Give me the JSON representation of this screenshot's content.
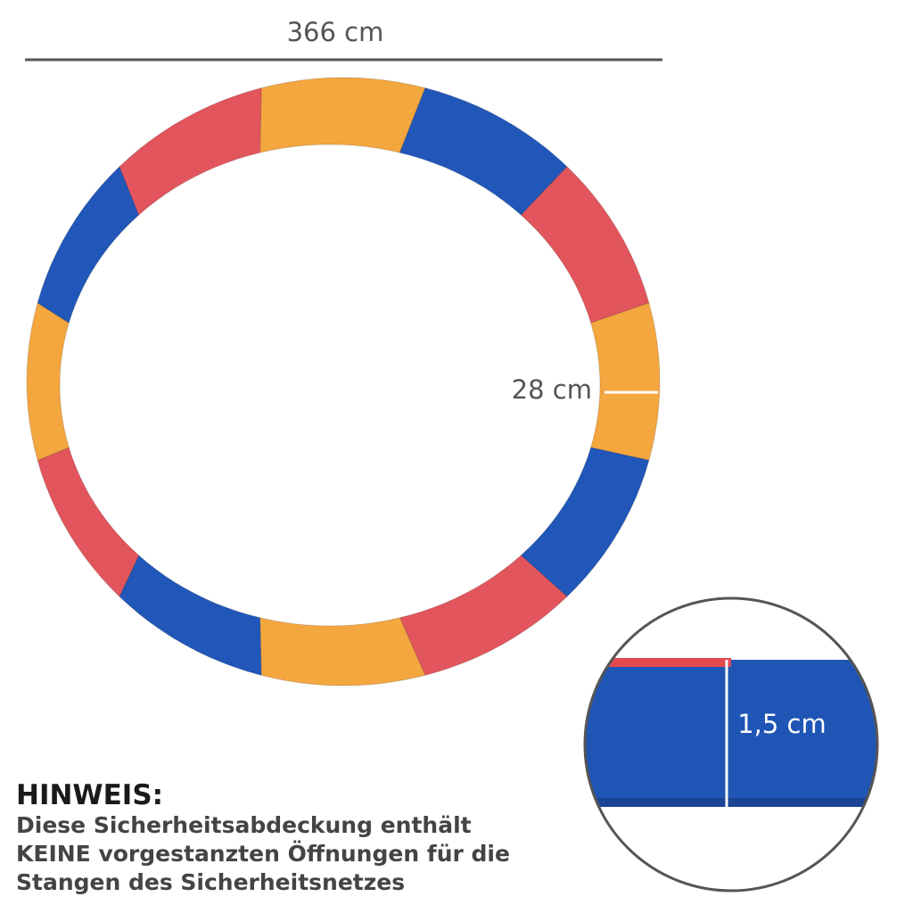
{
  "dimensions": {
    "diameter": "366 cm",
    "width": "28 cm",
    "thickness": "1,5 cm"
  },
  "note": {
    "title": "HINWEIS:",
    "lines": [
      "Diese Sicherheitsabdeckung enthält",
      "KEINE vorgestanzten Öffnungen für die",
      "Stangen des Sicherheitsnetzes"
    ]
  }
}
